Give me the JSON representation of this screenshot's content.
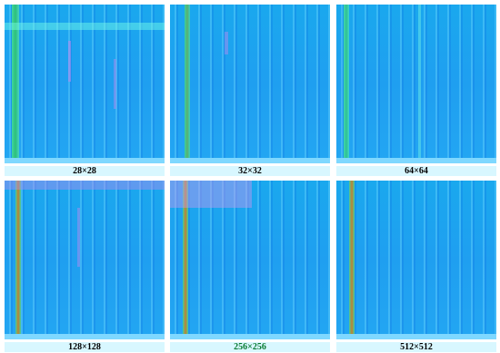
{
  "panels": [
    {
      "label": "28×28"
    },
    {
      "label": "32×32"
    },
    {
      "label": "64×64"
    },
    {
      "label": "128×128"
    },
    {
      "label": "256×256"
    },
    {
      "label": "512×512"
    }
  ]
}
